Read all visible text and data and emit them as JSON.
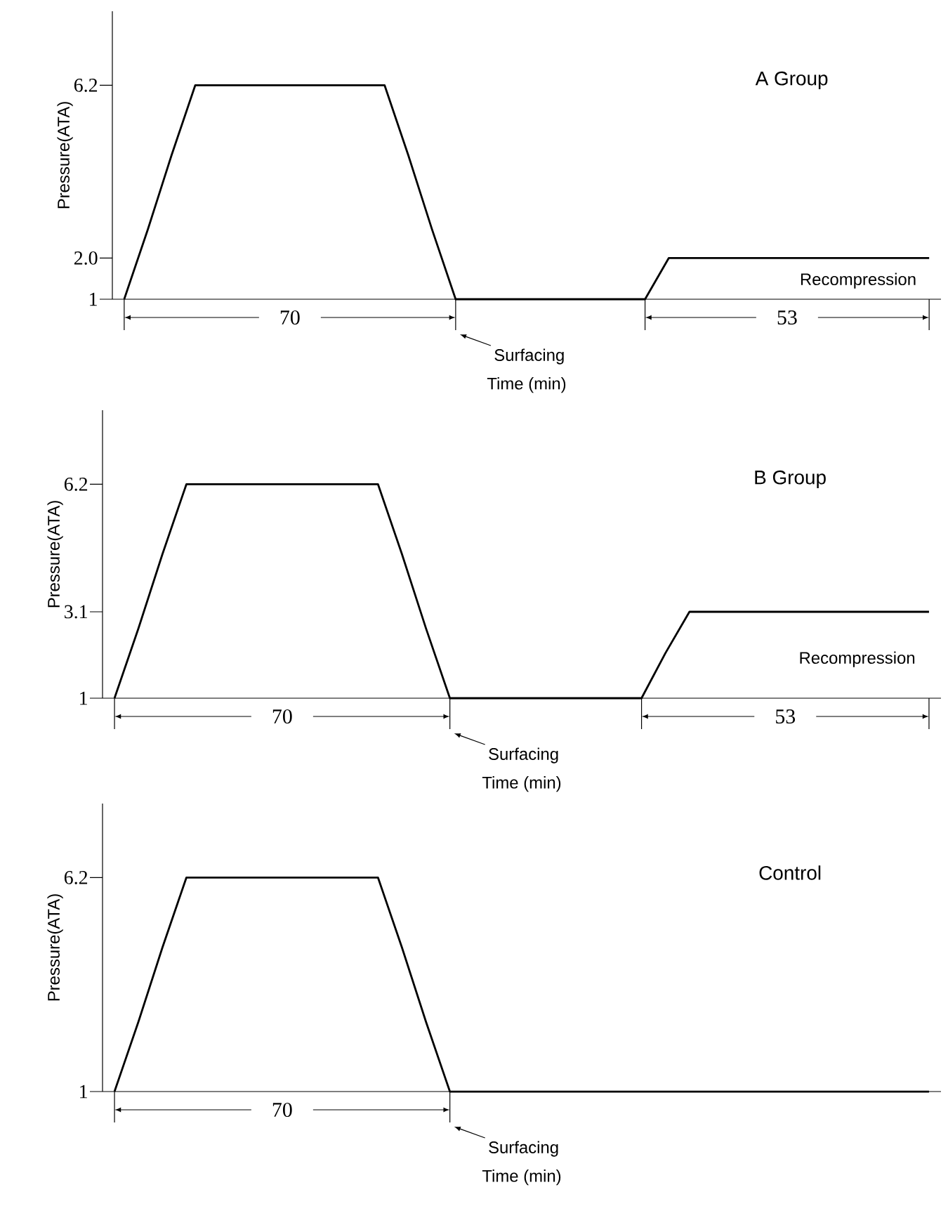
{
  "chart_data": [
    {
      "type": "line",
      "title": "A Group",
      "xlabel": "Time (min)",
      "ylabel": "Pressure(ATA)",
      "tick_labels": "y",
      "categories": [
        null,
        null,
        null,
        null,
        null,
        null,
        null,
        null,
        null,
        null,
        null,
        null,
        null,
        null,
        null,
        null,
        null,
        null,
        null,
        null,
        null,
        null,
        null,
        null,
        null,
        null,
        null,
        null,
        null,
        null,
        null,
        null,
        null,
        null,
        null
      ],
      "series": [
        {
          "color": "#000000",
          "values": [
            1,
            2.7,
            4.5,
            6.2,
            6.2,
            6.2,
            6.2,
            6.2,
            6.2,
            6.2,
            6.2,
            6.2,
            4.5,
            2.7,
            1,
            1,
            1,
            1,
            1,
            1,
            1,
            1,
            1,
            2.0,
            2.0,
            2.0,
            2.0,
            2.0,
            2.0,
            2.0,
            2.0,
            2.0,
            2.0,
            2.0,
            2.0
          ]
        }
      ],
      "ylim": [
        1,
        8
      ],
      "yticks": [
        1,
        {
          "value": 2,
          "label": "2.0"
        },
        6.2
      ],
      "annotations": [
        "70",
        "53",
        "Surfacing",
        "Recompression"
      ]
    },
    {
      "type": "line",
      "title": "B Group",
      "xlabel": "Time (min)",
      "ylabel": "Pressure(ATA)",
      "tick_labels": "y",
      "categories": [
        null,
        null,
        null,
        null,
        null,
        null,
        null,
        null,
        null,
        null,
        null,
        null,
        null,
        null,
        null,
        null,
        null,
        null,
        null,
        null,
        null,
        null,
        null,
        null,
        null,
        null,
        null,
        null,
        null,
        null,
        null,
        null,
        null,
        null,
        null
      ],
      "series": [
        {
          "color": "#000000",
          "values": [
            1,
            2.7,
            4.5,
            6.2,
            6.2,
            6.2,
            6.2,
            6.2,
            6.2,
            6.2,
            6.2,
            6.2,
            4.5,
            2.7,
            1,
            1,
            1,
            1,
            1,
            1,
            1,
            1,
            1,
            2.1,
            3.1,
            3.1,
            3.1,
            3.1,
            3.1,
            3.1,
            3.1,
            3.1,
            3.1,
            3.1,
            3.1
          ]
        }
      ],
      "ylim": [
        1,
        8
      ],
      "yticks": [
        1,
        3.1,
        6.2
      ],
      "annotations": [
        "70",
        "53",
        "Surfacing",
        "Recompression"
      ]
    },
    {
      "type": "line",
      "title": "Control",
      "xlabel": "Time (min)",
      "ylabel": "Pressure(ATA)",
      "tick_labels": "y",
      "categories": [
        null,
        null,
        null,
        null,
        null,
        null,
        null,
        null,
        null,
        null,
        null,
        null,
        null,
        null,
        null,
        null,
        null,
        null,
        null,
        null,
        null,
        null,
        null,
        null,
        null,
        null,
        null,
        null,
        null,
        null,
        null,
        null,
        null,
        null,
        null
      ],
      "series": [
        {
          "color": "#000000",
          "values": [
            1,
            2.7,
            4.5,
            6.2,
            6.2,
            6.2,
            6.2,
            6.2,
            6.2,
            6.2,
            6.2,
            6.2,
            4.5,
            2.7,
            1,
            1,
            1,
            1,
            1,
            1,
            1,
            1,
            1,
            1,
            1,
            1,
            1,
            1,
            1,
            1,
            1,
            1,
            1,
            1,
            1
          ]
        }
      ],
      "ylim": [
        1,
        8
      ],
      "yticks": [
        1,
        6.2
      ],
      "annotations": [
        "70",
        "Surfacing"
      ]
    }
  ]
}
